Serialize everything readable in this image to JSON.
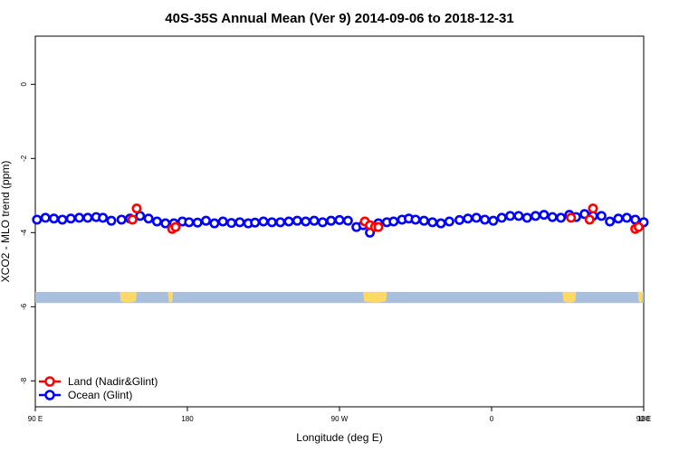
{
  "chart_data": {
    "type": "scatter",
    "title": "40S-35S Annual Mean (Ver 9)   2014-09-06 to 2018-12-31",
    "xlabel": "Longitude (deg E)",
    "ylabel": "XCO2 - MLO trend (ppm)",
    "xlim": [
      90,
      450
    ],
    "ylim": [
      -8.7,
      1.3
    ],
    "x_ticks": [
      {
        "value": 90,
        "label": "90 E"
      },
      {
        "value": 180,
        "label": "180"
      },
      {
        "value": 270,
        "label": "90 W"
      },
      {
        "value": 360,
        "label": "0"
      },
      {
        "value": 450,
        "label": "90 E"
      },
      {
        "value": 540,
        "label": "180"
      }
    ],
    "y_ticks": [
      {
        "value": 0,
        "label": "0"
      },
      {
        "value": -2,
        "label": "-2"
      },
      {
        "value": -4,
        "label": "-4"
      },
      {
        "value": -6,
        "label": "-6"
      },
      {
        "value": -8,
        "label": "-8"
      }
    ],
    "grid": false,
    "legend_position": "bottom-left",
    "map_strip": {
      "y_top": -5.6,
      "y_bottom": -5.9,
      "ocean_color": "#a8bfe0",
      "land_color": "#ffd966"
    },
    "series": [
      {
        "name": "Land (Nadir&Glint)",
        "color": "#ff0000",
        "x": [
          147.5,
          150,
          171,
          173,
          285,
          288,
          291,
          293,
          407,
          418,
          420,
          445,
          447
        ],
        "y": [
          -3.65,
          -3.35,
          -3.9,
          -3.85,
          -3.7,
          -3.8,
          -3.85,
          -3.85,
          -3.6,
          -3.65,
          -3.35,
          -3.9,
          -3.85
        ]
      },
      {
        "name": "Ocean (Glint)",
        "color": "#0000ff",
        "x": [
          91,
          96,
          101,
          106,
          111,
          116,
          121,
          126,
          130,
          135,
          141,
          146,
          152,
          157,
          162,
          167,
          172,
          177,
          181,
          186,
          191,
          196,
          201,
          206,
          211,
          216,
          220,
          225,
          230,
          235,
          240,
          245,
          250,
          255,
          260,
          265,
          270,
          275,
          280,
          284,
          288,
          293,
          298,
          302,
          307,
          311,
          315,
          320,
          325,
          330,
          335,
          341,
          346,
          351,
          356,
          361,
          366,
          371,
          376,
          381,
          386,
          391,
          396,
          401,
          406,
          410,
          415,
          420,
          425,
          430,
          435,
          440,
          445,
          450
        ],
        "y": [
          -3.65,
          -3.6,
          -3.62,
          -3.65,
          -3.62,
          -3.6,
          -3.6,
          -3.58,
          -3.6,
          -3.68,
          -3.65,
          -3.62,
          -3.55,
          -3.62,
          -3.7,
          -3.75,
          -3.75,
          -3.7,
          -3.72,
          -3.73,
          -3.68,
          -3.75,
          -3.7,
          -3.74,
          -3.72,
          -3.75,
          -3.73,
          -3.7,
          -3.72,
          -3.72,
          -3.7,
          -3.68,
          -3.7,
          -3.68,
          -3.72,
          -3.68,
          -3.66,
          -3.68,
          -3.85,
          -3.8,
          -4.0,
          -3.75,
          -3.72,
          -3.7,
          -3.65,
          -3.62,
          -3.65,
          -3.68,
          -3.72,
          -3.75,
          -3.7,
          -3.66,
          -3.62,
          -3.6,
          -3.65,
          -3.68,
          -3.6,
          -3.55,
          -3.55,
          -3.6,
          -3.55,
          -3.52,
          -3.58,
          -3.6,
          -3.52,
          -3.58,
          -3.5,
          -3.55,
          -3.55,
          -3.7,
          -3.62,
          -3.6,
          -3.65,
          -3.72
        ]
      }
    ]
  }
}
